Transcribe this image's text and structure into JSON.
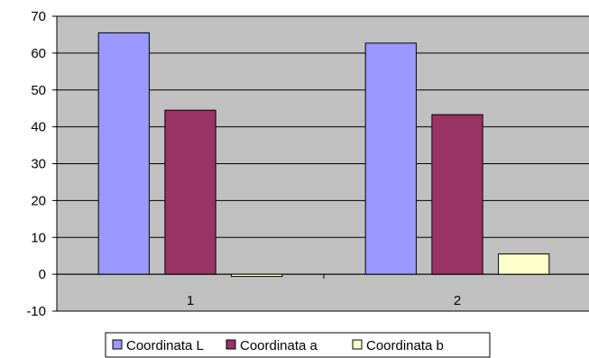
{
  "chart_data": {
    "type": "bar",
    "categories": [
      "1",
      "2"
    ],
    "series": [
      {
        "name": "Coordinata L",
        "values": [
          65.5,
          62.7
        ],
        "color": "#9999ff"
      },
      {
        "name": "Coordinata a",
        "values": [
          44.5,
          43.3
        ],
        "color": "#993366"
      },
      {
        "name": "Coordinata b",
        "values": [
          -0.6,
          5.5
        ],
        "color": "#ffffcc"
      }
    ],
    "ylim": [
      -10,
      70
    ],
    "yticks": [
      -10,
      0,
      10,
      20,
      30,
      40,
      50,
      60,
      70
    ],
    "grid": true,
    "plot_background": "#c0c0c0",
    "legend_position": "bottom"
  }
}
